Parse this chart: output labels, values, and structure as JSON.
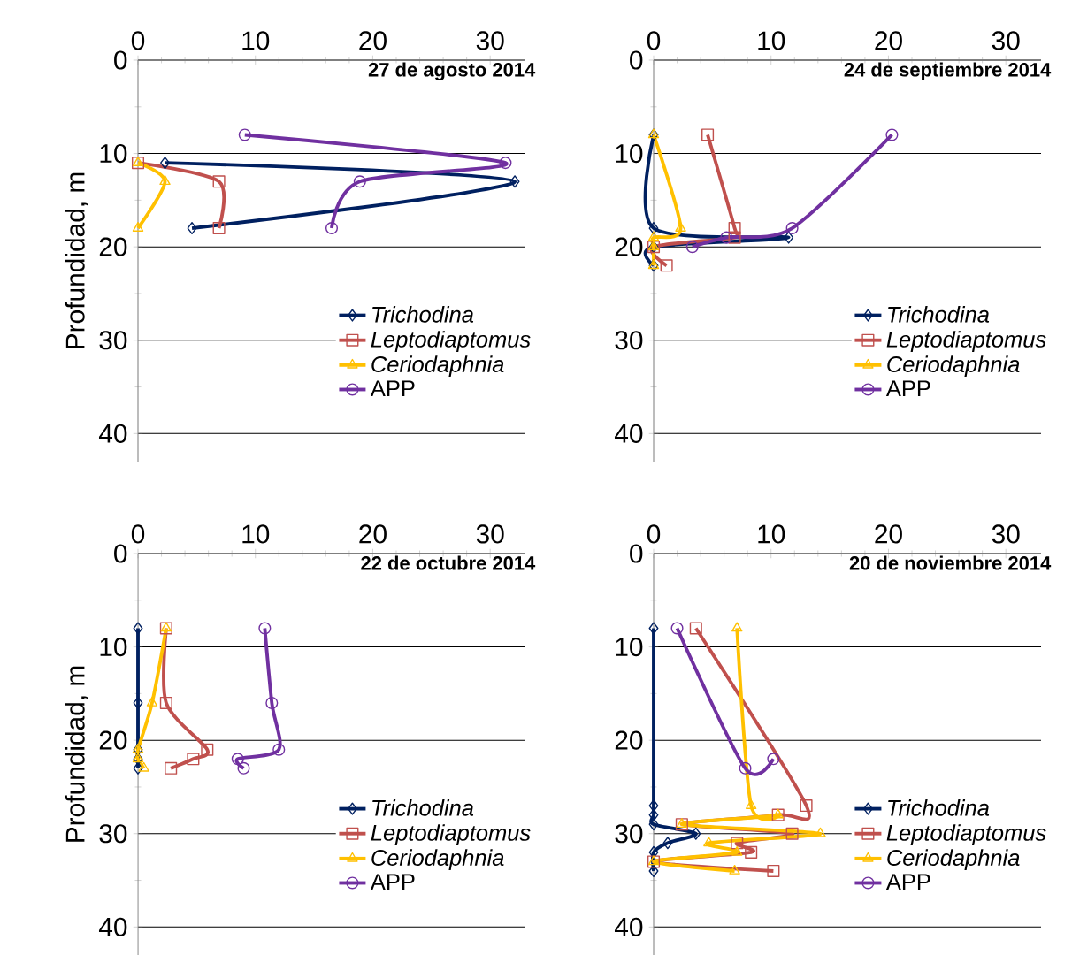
{
  "chart_data": [
    {
      "type": "line",
      "title": "27 de agosto 2014",
      "ylabel": "Profundidad, m",
      "xlim": [
        0,
        33
      ],
      "xticks": [
        0,
        10,
        20,
        30
      ],
      "ylim": [
        43,
        0
      ],
      "yticks": [
        0,
        10,
        20,
        30,
        40
      ],
      "grid": "y",
      "legend": "right",
      "series": [
        {
          "name": "*Trichodina*",
          "color": "#002060",
          "marker": "diamond",
          "x": [
            2.3,
            32.1,
            4.6
          ],
          "values": [
            11,
            13,
            18
          ]
        },
        {
          "name": "*Leptodiaptomus*",
          "color": "#c0504d",
          "marker": "square",
          "x": [
            0,
            6.9,
            6.9
          ],
          "values": [
            11,
            13,
            18
          ]
        },
        {
          "name": "*Ceriodaphnia*",
          "color": "#ffc000",
          "marker": "triangle",
          "x": [
            0,
            2.3,
            0
          ],
          "values": [
            11,
            13,
            18
          ]
        },
        {
          "name": "APP",
          "color": "#7030a0",
          "marker": "circle",
          "x": [
            9.1,
            31.3,
            18.9,
            16.5
          ],
          "values": [
            8,
            11,
            13,
            18
          ]
        }
      ]
    },
    {
      "type": "line",
      "title": "24 de septiembre 2014",
      "xlim": [
        0,
        33
      ],
      "xticks": [
        0,
        10,
        20,
        30
      ],
      "ylim": [
        43,
        0
      ],
      "yticks": [
        0,
        10,
        20,
        30,
        40
      ],
      "grid": "y",
      "legend": "right",
      "series": [
        {
          "name": "*Trichodina*",
          "color": "#002060",
          "marker": "diamond",
          "x": [
            0,
            0,
            11.5,
            0,
            0
          ],
          "values": [
            8,
            18,
            19,
            20,
            22
          ]
        },
        {
          "name": "*Leptodiaptomus*",
          "color": "#c0504d",
          "marker": "square",
          "x": [
            4.6,
            6.9,
            6.9,
            0,
            1.1
          ],
          "values": [
            8,
            18,
            19,
            20,
            22
          ]
        },
        {
          "name": "*Ceriodaphnia*",
          "color": "#ffc000",
          "marker": "triangle",
          "x": [
            0,
            2.3,
            0,
            0,
            0
          ],
          "values": [
            8,
            18,
            19,
            20,
            22
          ]
        },
        {
          "name": "APP",
          "color": "#7030a0",
          "marker": "circle",
          "x": [
            20.3,
            11.8,
            6.2,
            3.3
          ],
          "values": [
            8,
            18,
            19,
            20
          ]
        }
      ]
    },
    {
      "type": "line",
      "title": "22 de octubre 2014",
      "ylabel": "Profundidad, m",
      "xlim": [
        0,
        33
      ],
      "xticks": [
        0,
        10,
        20,
        30
      ],
      "ylim": [
        43,
        0
      ],
      "yticks": [
        0,
        10,
        20,
        30,
        40
      ],
      "grid": "y",
      "legend": "right",
      "series": [
        {
          "name": "*Trichodina*",
          "color": "#002060",
          "marker": "diamond",
          "x": [
            0,
            0,
            0,
            0,
            0
          ],
          "values": [
            8,
            16,
            21,
            22,
            23
          ]
        },
        {
          "name": "*Leptodiaptomus*",
          "color": "#c0504d",
          "marker": "square",
          "x": [
            2.4,
            2.4,
            5.9,
            4.7,
            2.8
          ],
          "values": [
            8,
            16,
            21,
            22,
            23
          ]
        },
        {
          "name": "*Ceriodaphnia*",
          "color": "#ffc000",
          "marker": "triangle",
          "x": [
            2.4,
            1.2,
            0,
            0,
            0.5
          ],
          "values": [
            8,
            16,
            21,
            22,
            23
          ]
        },
        {
          "name": "APP",
          "color": "#7030a0",
          "marker": "circle",
          "x": [
            10.8,
            11.4,
            12,
            8.5,
            9
          ],
          "values": [
            8,
            16,
            21,
            22,
            23
          ]
        }
      ]
    },
    {
      "type": "line",
      "title": "20 de noviembre 2014",
      "xlim": [
        0,
        33
      ],
      "xticks": [
        0,
        10,
        20,
        30
      ],
      "ylim": [
        43,
        0
      ],
      "yticks": [
        0,
        10,
        20,
        30,
        40
      ],
      "grid": "y",
      "legend": "right",
      "series": [
        {
          "name": "*Trichodina*",
          "color": "#002060",
          "marker": "diamond",
          "x": [
            0,
            0,
            0,
            0,
            3.6,
            1.2,
            0,
            0
          ],
          "values": [
            8,
            27,
            28,
            29,
            30,
            31,
            32,
            34
          ]
        },
        {
          "name": "*Leptodiaptomus*",
          "color": "#c0504d",
          "marker": "square",
          "x": [
            3.6,
            13,
            10.6,
            2.4,
            11.8,
            7.1,
            8.3,
            0,
            10.2
          ],
          "values": [
            8,
            27,
            28,
            29,
            30,
            31,
            32,
            33,
            34
          ]
        },
        {
          "name": "*Ceriodaphnia*",
          "color": "#ffc000",
          "marker": "triangle",
          "x": [
            7.1,
            8.3,
            10.6,
            2.4,
            14.2,
            4.7,
            7.1,
            0,
            6.9
          ],
          "values": [
            8,
            27,
            28,
            29,
            30,
            31,
            32,
            33,
            34
          ]
        },
        {
          "name": "APP",
          "color": "#7030a0",
          "marker": "circle",
          "x": [
            2,
            7.8,
            10.2
          ],
          "values": [
            8,
            23,
            22
          ]
        }
      ]
    }
  ]
}
